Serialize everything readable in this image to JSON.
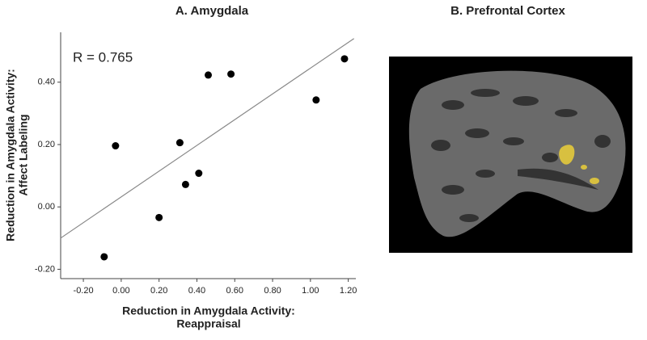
{
  "chart_data": [
    {
      "type": "scatter",
      "title": "A. Amygdala",
      "xlabel": [
        "Reduction in Amygdala Activity:",
        "Reappraisal"
      ],
      "ylabel": [
        "Reduction in Amygdala Activity:",
        "Affect Labeling"
      ],
      "annotation": "R = 0.765",
      "x": [
        -0.09,
        -0.03,
        0.2,
        0.31,
        0.34,
        0.41,
        0.46,
        0.58,
        1.03,
        1.18
      ],
      "values": [
        -0.16,
        0.196,
        -0.034,
        0.206,
        0.072,
        0.108,
        0.423,
        0.426,
        0.343,
        0.475
      ],
      "color": "#000000",
      "fit_line": {
        "x": [
          -0.32,
          1.23
        ],
        "y": [
          -0.1,
          0.54
        ],
        "color": "#888888"
      },
      "xlim": [
        -0.32,
        1.24
      ],
      "xticks": [
        {
          "value": -0.2,
          "label": "-0.20"
        },
        {
          "value": 0,
          "label": "0.00"
        },
        {
          "value": 0.2,
          "label": "0.20"
        },
        {
          "value": 0.4,
          "label": "0.40"
        },
        {
          "value": 0.6,
          "label": "0.60"
        },
        {
          "value": 0.8,
          "label": "0.80"
        },
        {
          "value": 1,
          "label": "1.00"
        },
        {
          "value": 1.2,
          "label": "1.20"
        }
      ],
      "ylim": [
        -0.23,
        0.56
      ],
      "yticks": [
        {
          "value": -0.2,
          "label": "-0.20"
        },
        {
          "value": 0,
          "label": "0.00"
        },
        {
          "value": 0.2,
          "label": "0.20"
        },
        {
          "value": 0.4,
          "label": "0.40"
        }
      ]
    },
    {
      "type": "image",
      "title": "B. Prefrontal Cortex"
    }
  ]
}
